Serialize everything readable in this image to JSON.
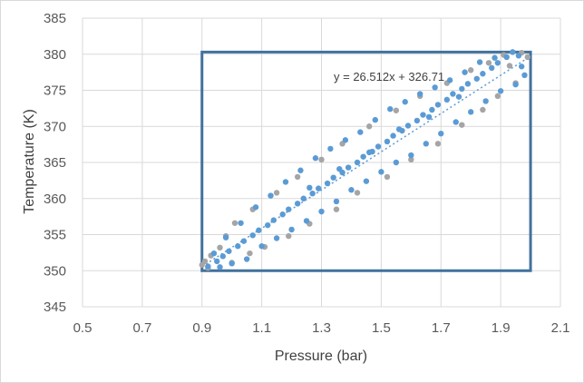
{
  "chart_data": {
    "type": "scatter",
    "xlabel": "Pressure (bar)",
    "ylabel": "Temperature (K)",
    "xlim": [
      0.5,
      2.1
    ],
    "ylim": [
      345,
      385
    ],
    "x_ticks": [
      "0.5",
      "0.7",
      "0.9",
      "1.1",
      "1.3",
      "1.5",
      "1.7",
      "1.9",
      "2.1"
    ],
    "y_ticks": [
      "345",
      "350",
      "355",
      "360",
      "365",
      "370",
      "375",
      "380",
      "385"
    ],
    "grid": true,
    "legend": "none",
    "trendline": {
      "equation": "y = 26.512x + 326.71",
      "slope": 26.512,
      "intercept": 326.71,
      "x_range": [
        0.9,
        2.0
      ],
      "style": "dotted"
    },
    "highlight_box": {
      "x": [
        0.9,
        2.0
      ],
      "y": [
        350,
        380.3
      ]
    },
    "colors": {
      "series_main": "#5b9bd5",
      "series_gray": "#a5a5a5",
      "box": "#41719c",
      "grid": "#d9d9d9"
    },
    "series": [
      {
        "color": "#5b9bd5",
        "points": [
          [
            0.92,
            350.6
          ],
          [
            0.95,
            351.3
          ],
          [
            0.97,
            352.0
          ],
          [
            0.99,
            352.7
          ],
          [
            1.02,
            353.4
          ],
          [
            1.04,
            354.1
          ],
          [
            1.07,
            354.9
          ],
          [
            1.09,
            355.6
          ],
          [
            1.12,
            356.3
          ],
          [
            1.14,
            357.0
          ],
          [
            1.17,
            357.8
          ],
          [
            1.19,
            358.5
          ],
          [
            1.22,
            359.3
          ],
          [
            1.24,
            360.0
          ],
          [
            1.27,
            360.7
          ],
          [
            1.29,
            361.4
          ],
          [
            1.32,
            362.1
          ],
          [
            1.34,
            362.9
          ],
          [
            1.37,
            363.6
          ],
          [
            1.39,
            364.3
          ],
          [
            1.42,
            365.0
          ],
          [
            1.44,
            365.8
          ],
          [
            1.47,
            366.5
          ],
          [
            1.49,
            367.2
          ],
          [
            1.52,
            367.9
          ],
          [
            1.54,
            368.7
          ],
          [
            1.57,
            369.4
          ],
          [
            1.59,
            370.1
          ],
          [
            1.62,
            370.8
          ],
          [
            1.64,
            371.6
          ],
          [
            1.67,
            372.3
          ],
          [
            1.69,
            373.0
          ],
          [
            1.72,
            373.7
          ],
          [
            1.74,
            374.5
          ],
          [
            1.77,
            375.2
          ],
          [
            1.79,
            375.9
          ],
          [
            1.82,
            376.6
          ],
          [
            1.84,
            377.3
          ],
          [
            1.87,
            378.1
          ],
          [
            1.89,
            378.8
          ],
          [
            1.92,
            379.6
          ],
          [
            1.94,
            380.3
          ],
          [
            0.94,
            352.4
          ],
          [
            0.98,
            354.6
          ],
          [
            1.03,
            356.6
          ],
          [
            1.08,
            358.8
          ],
          [
            1.13,
            360.4
          ],
          [
            1.18,
            362.3
          ],
          [
            1.23,
            363.9
          ],
          [
            1.28,
            365.6
          ],
          [
            1.33,
            366.9
          ],
          [
            1.38,
            368.1
          ],
          [
            1.43,
            369.2
          ],
          [
            1.48,
            370.9
          ],
          [
            1.53,
            372.4
          ],
          [
            1.58,
            373.4
          ],
          [
            1.63,
            374.5
          ],
          [
            1.68,
            375.4
          ],
          [
            1.73,
            376.4
          ],
          [
            1.78,
            377.5
          ],
          [
            1.83,
            378.9
          ],
          [
            1.88,
            379.5
          ],
          [
            1.96,
            379.8
          ],
          [
            0.96,
            350.5
          ],
          [
            1.0,
            351.0
          ],
          [
            1.05,
            351.6
          ],
          [
            1.1,
            353.4
          ],
          [
            1.15,
            354.5
          ],
          [
            1.2,
            355.7
          ],
          [
            1.25,
            356.9
          ],
          [
            1.3,
            358.2
          ],
          [
            1.35,
            359.6
          ],
          [
            1.4,
            361.2
          ],
          [
            1.45,
            362.4
          ],
          [
            1.5,
            363.7
          ],
          [
            1.55,
            365.0
          ],
          [
            1.6,
            366.0
          ],
          [
            1.65,
            367.6
          ],
          [
            1.7,
            369.0
          ],
          [
            1.75,
            370.6
          ],
          [
            1.8,
            372.0
          ],
          [
            1.85,
            373.5
          ],
          [
            1.9,
            374.9
          ],
          [
            1.95,
            375.8
          ],
          [
            1.98,
            377.1
          ],
          [
            1.97,
            378.3
          ],
          [
            1.26,
            361.5
          ],
          [
            1.36,
            364.1
          ],
          [
            1.46,
            366.4
          ],
          [
            1.56,
            369.6
          ],
          [
            1.66,
            371.3
          ],
          [
            1.76,
            374.1
          ]
        ]
      },
      {
        "color": "#a5a5a5",
        "points": [
          [
            0.91,
            351.3
          ],
          [
            0.93,
            352.1
          ],
          [
            0.9,
            350.8
          ],
          [
            0.92,
            350.4
          ],
          [
            0.96,
            353.2
          ],
          [
            0.98,
            354.8
          ],
          [
            1.01,
            356.6
          ],
          [
            1.07,
            358.5
          ],
          [
            1.15,
            360.8
          ],
          [
            1.22,
            363.0
          ],
          [
            1.3,
            365.4
          ],
          [
            1.37,
            367.6
          ],
          [
            1.46,
            370.0
          ],
          [
            1.55,
            372.2
          ],
          [
            1.63,
            374.2
          ],
          [
            1.72,
            376.0
          ],
          [
            1.8,
            377.8
          ],
          [
            1.86,
            378.8
          ],
          [
            1.91,
            379.9
          ],
          [
            1.97,
            380.2
          ],
          [
            1.99,
            379.6
          ],
          [
            1.93,
            378.4
          ],
          [
            1.0,
            351.1
          ],
          [
            1.06,
            352.4
          ],
          [
            1.11,
            353.3
          ],
          [
            1.19,
            354.8
          ],
          [
            1.26,
            356.5
          ],
          [
            1.35,
            358.5
          ],
          [
            1.42,
            360.8
          ],
          [
            1.52,
            363.0
          ],
          [
            1.6,
            365.4
          ],
          [
            1.69,
            367.6
          ],
          [
            1.77,
            370.2
          ],
          [
            1.84,
            372.3
          ],
          [
            1.89,
            374.2
          ],
          [
            1.95,
            376.0
          ]
        ]
      }
    ]
  }
}
